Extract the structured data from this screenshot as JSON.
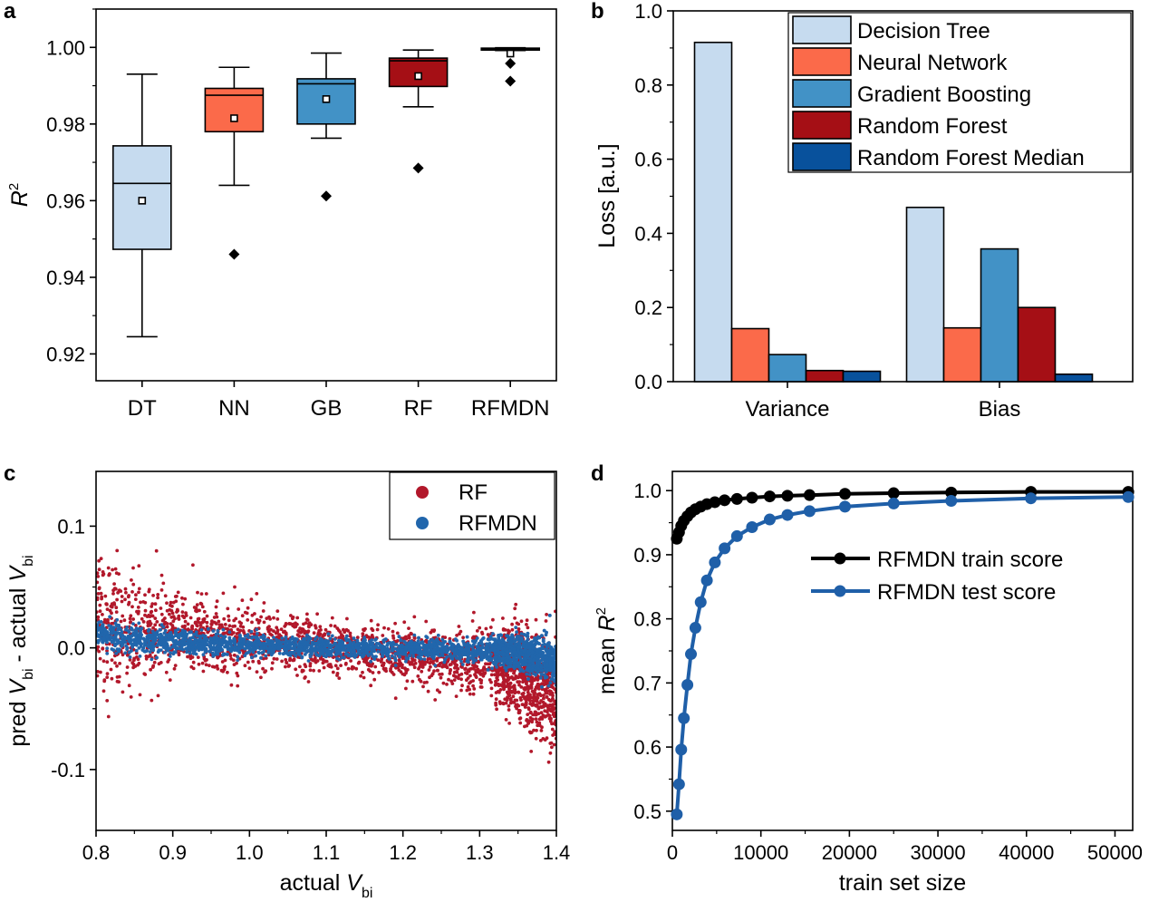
{
  "panels": [
    "a",
    "b",
    "c",
    "d"
  ],
  "chart_data": [
    {
      "panel": "a",
      "type": "box",
      "ylabel": "R",
      "ylabel_sup": "2",
      "ylim": [
        0.913,
        1.01
      ],
      "yticks": [
        "0.92",
        "0.94",
        "0.96",
        "0.98",
        "1.00"
      ],
      "categories": [
        "DT",
        "NN",
        "GB",
        "RF",
        "RFMDN"
      ],
      "colors": [
        "#c6dbef",
        "#fb6a4a",
        "#4292c6",
        "#a50f15",
        "#08519c"
      ],
      "boxes": [
        {
          "whisker_low": 0.9245,
          "q1": 0.9473,
          "median": 0.9645,
          "q3": 0.9743,
          "whisker_high": 0.993,
          "mean": 0.96,
          "outliers": []
        },
        {
          "whisker_low": 0.964,
          "q1": 0.978,
          "median": 0.9875,
          "q3": 0.9893,
          "whisker_high": 0.9948,
          "mean": 0.9815,
          "outliers": [
            0.946
          ]
        },
        {
          "whisker_low": 0.9763,
          "q1": 0.98,
          "median": 0.9905,
          "q3": 0.9918,
          "whisker_high": 0.9985,
          "mean": 0.9865,
          "outliers": [
            0.9612
          ]
        },
        {
          "whisker_low": 0.9845,
          "q1": 0.9898,
          "median": 0.9965,
          "q3": 0.9972,
          "whisker_high": 0.9993,
          "mean": 0.9925,
          "outliers": [
            0.9685
          ]
        },
        {
          "whisker_low": 0.9992,
          "q1": 0.9993,
          "median": 0.9996,
          "q3": 0.9998,
          "whisker_high": 0.9999,
          "mean": 0.9984,
          "outliers": [
            0.9958,
            0.9912
          ]
        }
      ]
    },
    {
      "panel": "b",
      "type": "bar",
      "ylabel": "Loss [a.u.]",
      "ylim": [
        0,
        1.0
      ],
      "yticks": [
        "0.0",
        "0.2",
        "0.4",
        "0.6",
        "0.8",
        "1.0"
      ],
      "categories": [
        "Variance",
        "Bias"
      ],
      "series": [
        {
          "name": "Decision Tree",
          "color": "#c6dbef",
          "values": [
            0.915,
            0.47
          ]
        },
        {
          "name": "Neural Network",
          "color": "#fb6a4a",
          "values": [
            0.143,
            0.145
          ]
        },
        {
          "name": "Gradient Boosting",
          "color": "#4292c6",
          "values": [
            0.073,
            0.358
          ]
        },
        {
          "name": "Random Forest",
          "color": "#a50f15",
          "values": [
            0.03,
            0.2
          ]
        },
        {
          "name": "Random Forest Median",
          "color": "#08519c",
          "values": [
            0.028,
            0.02
          ]
        }
      ],
      "legend": "top-right"
    },
    {
      "panel": "c",
      "type": "scatter",
      "xlabel": "actual V",
      "xlabel_sub": "bi",
      "ylabel_parts": [
        "pred V",
        "bi",
        " - actual V",
        "bi"
      ],
      "xlim": [
        0.8,
        1.4
      ],
      "ylim": [
        -0.15,
        0.145
      ],
      "xticks": [
        "0.8",
        "0.9",
        "1.0",
        "1.1",
        "1.2",
        "1.3",
        "1.4"
      ],
      "yticks": [
        "-0.1",
        "0.0",
        "0.1"
      ],
      "series": [
        {
          "name": "RF",
          "color": "#b2182b",
          "trend": [
            [
              0.8,
              0.02
            ],
            [
              0.9,
              0.013
            ],
            [
              1.0,
              0.006
            ],
            [
              1.1,
              0.0
            ],
            [
              1.2,
              -0.005
            ],
            [
              1.3,
              -0.012
            ],
            [
              1.35,
              -0.018
            ],
            [
              1.4,
              -0.04
            ]
          ],
          "spread": [
            [
              0.8,
              0.028
            ],
            [
              0.9,
              0.016
            ],
            [
              1.0,
              0.012
            ],
            [
              1.1,
              0.01
            ],
            [
              1.2,
              0.011
            ],
            [
              1.3,
              0.013
            ],
            [
              1.4,
              0.025
            ]
          ]
        },
        {
          "name": "RFMDN",
          "color": "#2166ac",
          "trend": [
            [
              0.8,
              0.01
            ],
            [
              0.9,
              0.005
            ],
            [
              1.0,
              0.002
            ],
            [
              1.1,
              0.0
            ],
            [
              1.2,
              -0.001
            ],
            [
              1.3,
              -0.002
            ],
            [
              1.35,
              -0.003
            ],
            [
              1.4,
              -0.012
            ]
          ],
          "spread": [
            [
              0.8,
              0.006
            ],
            [
              0.9,
              0.005
            ],
            [
              1.0,
              0.004
            ],
            [
              1.1,
              0.004
            ],
            [
              1.2,
              0.004
            ],
            [
              1.3,
              0.005
            ],
            [
              1.4,
              0.009
            ]
          ]
        }
      ],
      "legend": "top-right"
    },
    {
      "panel": "d",
      "type": "line",
      "xlabel": "train set size",
      "ylabel": "mean R",
      "ylabel_sup": "2",
      "xlim": [
        0,
        52000
      ],
      "ylim": [
        0.47,
        1.03
      ],
      "xticks": [
        "0",
        "10000",
        "20000",
        "30000",
        "40000",
        "50000"
      ],
      "yticks": [
        "0.5",
        "0.6",
        "0.7",
        "0.8",
        "0.9",
        "1.0"
      ],
      "series": [
        {
          "name": "RFMDN train score",
          "color": "#000000",
          "x": [
            500,
            750,
            1000,
            1300,
            1700,
            2100,
            2600,
            3200,
            3900,
            4800,
            5900,
            7300,
            9000,
            11000,
            13000,
            15500,
            19500,
            25000,
            31500,
            40500,
            51500
          ],
          "y": [
            0.925,
            0.935,
            0.945,
            0.953,
            0.96,
            0.966,
            0.971,
            0.975,
            0.979,
            0.982,
            0.985,
            0.987,
            0.989,
            0.991,
            0.992,
            0.993,
            0.995,
            0.996,
            0.997,
            0.998,
            0.998
          ]
        },
        {
          "name": "RFMDN test score",
          "color": "#1f5fa8",
          "x": [
            500,
            750,
            1000,
            1300,
            1700,
            2100,
            2600,
            3200,
            3900,
            4800,
            5900,
            7300,
            9000,
            11000,
            13000,
            15500,
            19500,
            25000,
            31500,
            40500,
            51500
          ],
          "y": [
            0.495,
            0.542,
            0.596,
            0.645,
            0.697,
            0.745,
            0.786,
            0.826,
            0.86,
            0.888,
            0.91,
            0.929,
            0.943,
            0.955,
            0.962,
            0.968,
            0.975,
            0.98,
            0.984,
            0.988,
            0.99
          ]
        }
      ],
      "legend": "center-right"
    }
  ]
}
